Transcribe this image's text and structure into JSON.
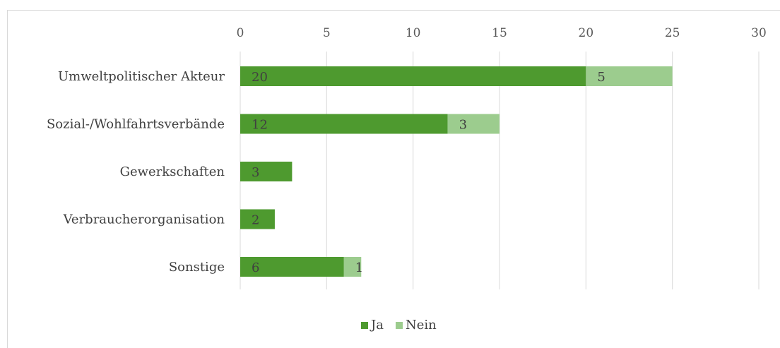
{
  "chart_data": {
    "type": "bar",
    "orientation": "horizontal",
    "stacked": true,
    "categories": [
      "Umweltpolitischer Akteur",
      "Sozial-/Wohlfahrtsverbände",
      "Gewerkschaften",
      "Verbraucherorganisation",
      "Sonstige"
    ],
    "series": [
      {
        "name": "Ja",
        "values": [
          20,
          12,
          3,
          2,
          6
        ],
        "color": "#4e9a2f"
      },
      {
        "name": "Nein",
        "values": [
          5,
          3,
          0,
          0,
          1
        ],
        "color": "#9ccc8e"
      }
    ],
    "xlim": [
      0,
      30
    ],
    "xticks": [
      0,
      5,
      10,
      15,
      20,
      25,
      30
    ],
    "x_axis_position": "top",
    "gridlines": true,
    "legend_position": "bottom",
    "data_labels": true
  }
}
